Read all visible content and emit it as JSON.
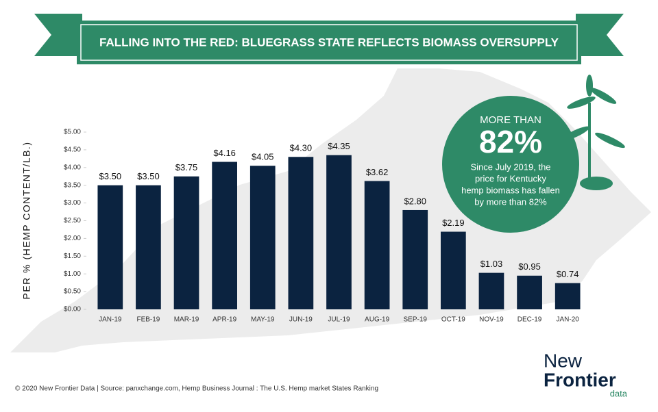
{
  "chart_data": {
    "type": "bar",
    "title": "FALLING INTO THE RED: BLUEGRASS STATE REFLECTS BIOMASS OVERSUPPLY",
    "y_label": "PER % (HEMP CONTENT/LB.)",
    "categories": [
      "JAN-19",
      "FEB-19",
      "MAR-19",
      "APR-19",
      "MAY-19",
      "JUN-19",
      "JUL-19",
      "AUG-19",
      "SEP-19",
      "OCT-19",
      "NOV-19",
      "DEC-19",
      "JAN-20"
    ],
    "values": [
      3.5,
      3.5,
      3.75,
      4.16,
      4.05,
      4.3,
      4.35,
      3.62,
      2.8,
      2.19,
      1.03,
      0.95,
      0.74
    ],
    "value_labels": [
      "$3.50",
      "$3.50",
      "$3.75",
      "$4.16",
      "$4.05",
      "$4.30",
      "$4.35",
      "$3.62",
      "$2.80",
      "$2.19",
      "$1.03",
      "$0.95",
      "$0.74"
    ],
    "color": "#0b2340",
    "ylim": [
      0,
      5
    ],
    "yticks": [
      {
        "value": 0,
        "label": "$0.00"
      },
      {
        "value": 0.5,
        "label": "$0.50"
      },
      {
        "value": 1,
        "label": "$1.00"
      },
      {
        "value": 1.5,
        "label": "$1.50"
      },
      {
        "value": 2,
        "label": "$2.00"
      },
      {
        "value": 2.5,
        "label": "$2.50"
      },
      {
        "value": 3,
        "label": "$3.00"
      },
      {
        "value": 3.5,
        "label": "$3.50"
      },
      {
        "value": 4,
        "label": "$4.00"
      },
      {
        "value": 4.5,
        "label": "$4.50"
      },
      {
        "value": 5,
        "label": "$5.00"
      }
    ],
    "callout": {
      "lead": "MORE THAN",
      "figure": "82%",
      "lines": [
        "Since July 2019, the",
        "price for Kentucky",
        "hemp biomass has fallen",
        "by more than 82%"
      ]
    },
    "footer": "© 2020 New Frontier Data | Source:  panxchange.com, Hemp Business Journal : The U.S. Hemp market States Ranking",
    "logo": {
      "line1": "New",
      "line2": "Frontier",
      "line3": "data"
    }
  }
}
